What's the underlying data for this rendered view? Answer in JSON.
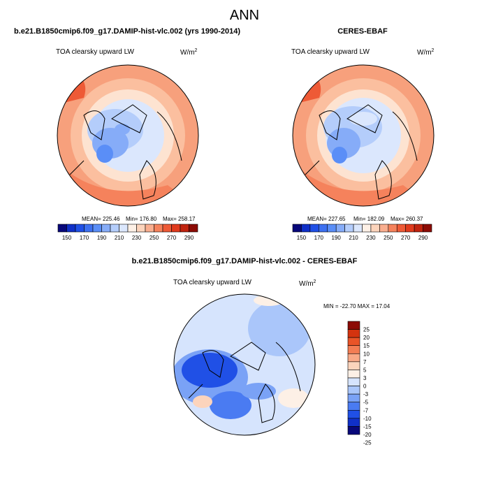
{
  "figure": {
    "title": "ANN",
    "colors": {
      "abs": [
        "#08087a",
        "#1030c8",
        "#2050e6",
        "#3d70f0",
        "#5a8ef7",
        "#86acf8",
        "#b4cdfb",
        "#dbe7fd",
        "#fdf0e6",
        "#fcd4bc",
        "#f9ae8f",
        "#f5825c",
        "#ee5a36",
        "#e03a1c",
        "#c0230e",
        "#8c0b05"
      ],
      "diff": [
        "#08087a",
        "#1030c8",
        "#2050e6",
        "#4a7bf2",
        "#7aa2f6",
        "#aac6fa",
        "#d6e4fd",
        "#fdf0e6",
        "#fcd4bc",
        "#f9a987",
        "#f37d54",
        "#e95428",
        "#d4330f",
        "#8c0b05"
      ]
    }
  },
  "chart_data": [
    {
      "type": "heatmap",
      "projection": "north-polar-stereographic",
      "title": "b.e21.B1850cmip6.f09_g17.DAMIP-hist-vlc.002 (yrs 1990-2014)",
      "variable": "TOA clearsky upward LW",
      "units": "W/m2",
      "stats": {
        "mean_label": "MEAN= 225.46",
        "min_label": "Min= 176.80",
        "max_label": "Max= 258.17",
        "mean": 225.46,
        "min": 176.8,
        "max": 258.17
      },
      "colorbar": {
        "orientation": "horizontal",
        "levels": [
          140,
          150,
          160,
          170,
          180,
          190,
          200,
          210,
          220,
          230,
          240,
          250,
          260,
          270,
          280,
          290
        ],
        "tick_labels": [
          "150",
          "170",
          "190",
          "210",
          "230",
          "250",
          "270",
          "290"
        ]
      }
    },
    {
      "type": "heatmap",
      "projection": "north-polar-stereographic",
      "title": "CERES-EBAF",
      "variable": "TOA clearsky upward LW",
      "units": "W/m2",
      "stats": {
        "mean_label": "MEAN= 227.65",
        "min_label": "Min= 182.09",
        "max_label": "Max= 260.37",
        "mean": 227.65,
        "min": 182.09,
        "max": 260.37
      },
      "colorbar": {
        "orientation": "horizontal",
        "levels": [
          140,
          150,
          160,
          170,
          180,
          190,
          200,
          210,
          220,
          230,
          240,
          250,
          260,
          270,
          280,
          290
        ],
        "tick_labels": [
          "150",
          "170",
          "190",
          "210",
          "230",
          "250",
          "270",
          "290"
        ]
      }
    },
    {
      "type": "heatmap",
      "projection": "north-polar-stereographic",
      "title": "b.e21.B1850cmip6.f09_g17.DAMIP-hist-vlc.002 - CERES-EBAF",
      "variable": "TOA clearsky upward LW",
      "units": "W/m2",
      "stats": {
        "minmax_label": "MIN = -22.70 MAX =  17.04",
        "min": -22.7,
        "max": 17.04
      },
      "colorbar": {
        "orientation": "vertical",
        "levels": [
          -25,
          -20,
          -15,
          -10,
          -7,
          -5,
          -3,
          0,
          3,
          5,
          7,
          10,
          15,
          20,
          25
        ],
        "tick_labels": [
          "25",
          "20",
          "15",
          "10",
          "7",
          "5",
          "3",
          "0",
          "-3",
          "-5",
          "-7",
          "-10",
          "-15",
          "-20",
          "-25"
        ]
      }
    }
  ]
}
